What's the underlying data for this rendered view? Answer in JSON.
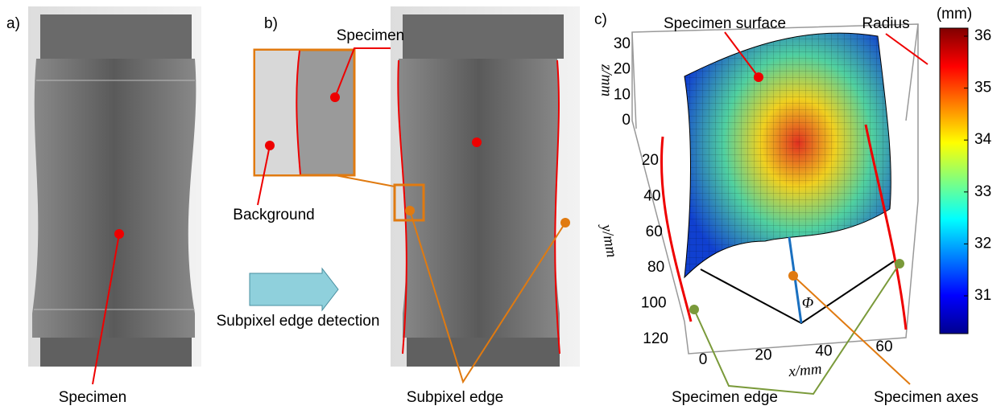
{
  "panel_a": {
    "label": "a)",
    "annotation": "Specimen"
  },
  "panel_b": {
    "label": "b)",
    "specimen": "Specimen",
    "background": "Background",
    "arrow": "Subpixel edge detection",
    "edge": "Subpixel edge"
  },
  "panel_c": {
    "label": "c)",
    "surface": "Specimen surface",
    "radius": "Radius",
    "unit": "(mm)",
    "z_axis": "z/mm",
    "y_axis": "y/mm",
    "x_axis": "x/mm",
    "phi": "Φ",
    "edge": "Specimen edge",
    "axes": "Specimen axes",
    "z_ticks": [
      0,
      10,
      20,
      30
    ],
    "y_ticks": [
      20,
      40,
      60,
      80,
      100,
      120
    ],
    "x_ticks": [
      0,
      20,
      40,
      60
    ],
    "colorbar_ticks": [
      31,
      32,
      33,
      34,
      35,
      36
    ]
  }
}
